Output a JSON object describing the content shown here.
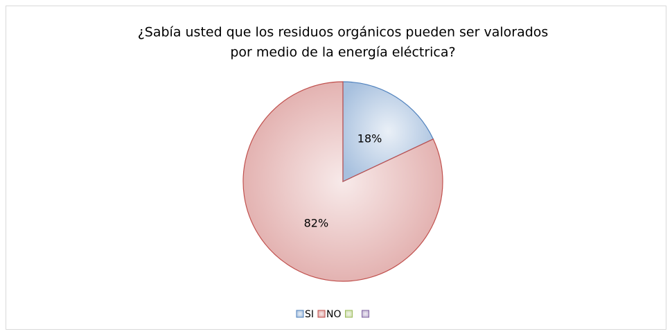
{
  "chart_data": {
    "type": "pie",
    "title": [
      "¿Sabía usted que los residuos orgánicos pueden ser valorados",
      "por medio de la energía eléctrica?"
    ],
    "categories": [
      "SI",
      "NO",
      null,
      null
    ],
    "values": [
      18,
      82,
      null,
      null
    ],
    "value_labels": [
      "18%",
      "82%",
      null,
      null
    ],
    "colors": [
      "#4f81bd",
      "#c0504d",
      "#9bbb59",
      "#8064a2"
    ],
    "legend": "bottom"
  }
}
